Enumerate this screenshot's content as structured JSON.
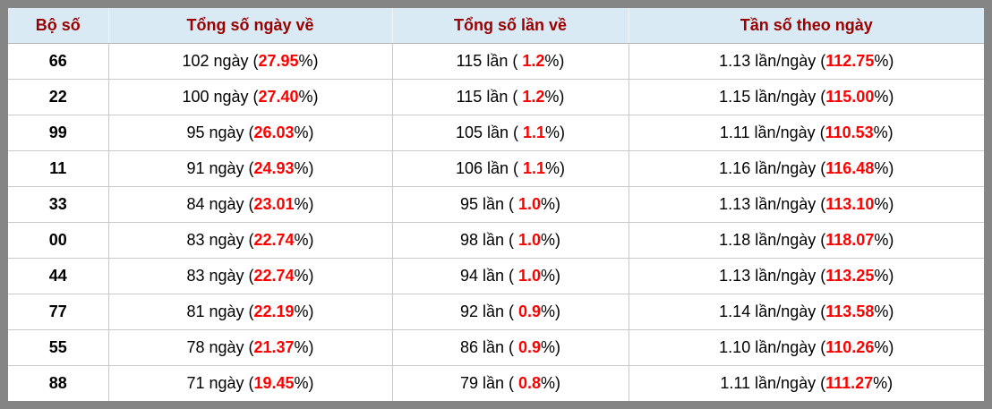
{
  "colors": {
    "frame_border": "#858585",
    "header_bg": "#d9eaf5",
    "header_text": "#990000",
    "highlight_red": "#ff0000",
    "grid_line": "#c9c9c9"
  },
  "table": {
    "headers": [
      "Bộ số",
      "Tổng số ngày về",
      "Tổng số lần về",
      "Tần số theo ngày"
    ],
    "rows": [
      {
        "pair": "66",
        "days": {
          "pre": "102 ngày (",
          "val": "27.95",
          "post": "%)"
        },
        "times": {
          "pre": "115 lần ( ",
          "val": "1.2",
          "post": "%)"
        },
        "freq": {
          "pre": "1.13 lần/ngày (",
          "val": "112.75",
          "post": "%)"
        }
      },
      {
        "pair": "22",
        "days": {
          "pre": "100 ngày (",
          "val": "27.40",
          "post": "%)"
        },
        "times": {
          "pre": "115 lần ( ",
          "val": "1.2",
          "post": "%)"
        },
        "freq": {
          "pre": "1.15 lần/ngày (",
          "val": "115.00",
          "post": "%)"
        }
      },
      {
        "pair": "99",
        "days": {
          "pre": "95 ngày (",
          "val": "26.03",
          "post": "%)"
        },
        "times": {
          "pre": "105 lần ( ",
          "val": "1.1",
          "post": "%)"
        },
        "freq": {
          "pre": "1.11 lần/ngày (",
          "val": "110.53",
          "post": "%)"
        }
      },
      {
        "pair": "11",
        "days": {
          "pre": "91 ngày (",
          "val": "24.93",
          "post": "%)"
        },
        "times": {
          "pre": "106 lần ( ",
          "val": "1.1",
          "post": "%)"
        },
        "freq": {
          "pre": "1.16 lần/ngày (",
          "val": "116.48",
          "post": "%)"
        }
      },
      {
        "pair": "33",
        "days": {
          "pre": "84 ngày (",
          "val": "23.01",
          "post": "%)"
        },
        "times": {
          "pre": "95 lần ( ",
          "val": "1.0",
          "post": "%)"
        },
        "freq": {
          "pre": "1.13 lần/ngày (",
          "val": "113.10",
          "post": "%)"
        }
      },
      {
        "pair": "00",
        "days": {
          "pre": "83 ngày (",
          "val": "22.74",
          "post": "%)"
        },
        "times": {
          "pre": "98 lần ( ",
          "val": "1.0",
          "post": "%)"
        },
        "freq": {
          "pre": "1.18 lần/ngày (",
          "val": "118.07",
          "post": "%)"
        }
      },
      {
        "pair": "44",
        "days": {
          "pre": "83 ngày (",
          "val": "22.74",
          "post": "%)"
        },
        "times": {
          "pre": "94 lần ( ",
          "val": "1.0",
          "post": "%)"
        },
        "freq": {
          "pre": "1.13 lần/ngày (",
          "val": "113.25",
          "post": "%)"
        }
      },
      {
        "pair": "77",
        "days": {
          "pre": "81 ngày (",
          "val": "22.19",
          "post": "%)"
        },
        "times": {
          "pre": "92 lần ( ",
          "val": "0.9",
          "post": "%)"
        },
        "freq": {
          "pre": "1.14 lần/ngày (",
          "val": "113.58",
          "post": "%)"
        }
      },
      {
        "pair": "55",
        "days": {
          "pre": "78 ngày (",
          "val": "21.37",
          "post": "%)"
        },
        "times": {
          "pre": "86 lần ( ",
          "val": "0.9",
          "post": "%)"
        },
        "freq": {
          "pre": "1.10 lần/ngày (",
          "val": "110.26",
          "post": "%)"
        }
      },
      {
        "pair": "88",
        "days": {
          "pre": "71 ngày (",
          "val": "19.45",
          "post": "%)"
        },
        "times": {
          "pre": "79 lần ( ",
          "val": "0.8",
          "post": "%)"
        },
        "freq": {
          "pre": "1.11 lần/ngày (",
          "val": "111.27",
          "post": "%)"
        }
      }
    ]
  }
}
